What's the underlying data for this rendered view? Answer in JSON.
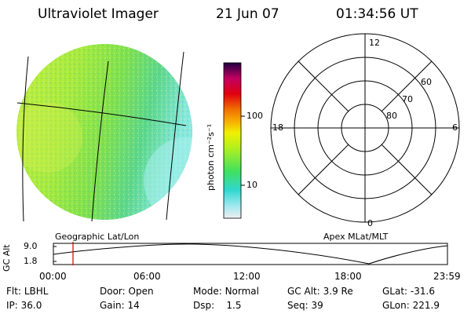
{
  "header": {
    "instrument": "Ultraviolet Imager",
    "date": "21 Jun 07",
    "time": "01:34:56 UT"
  },
  "colorbar": {
    "unit_label": "photon cm⁻²s⁻¹",
    "ticks": [
      "100",
      "10"
    ]
  },
  "polar_plot": {
    "mlt_labels": {
      "top": "12",
      "bottom": "0",
      "left": "18",
      "right": "6"
    },
    "lat_labels": [
      "60",
      "70",
      "80"
    ]
  },
  "timeline": {
    "axis_label": "GC Alt",
    "left_caption": "Geographic Lat/Lon",
    "right_caption": "Apex MLat/MLT",
    "y_ticks": [
      "9.0",
      "1.8"
    ],
    "x_ticks": [
      "00:00",
      "06:00",
      "12:00",
      "18:00",
      "23:59"
    ],
    "current_time": "01:34:56"
  },
  "status": {
    "row1": [
      {
        "key": "Flt:",
        "value": "LBHL"
      },
      {
        "key": "Door:",
        "value": "Open"
      },
      {
        "key": "Mode:",
        "value": "Normal"
      },
      {
        "key": "GC Alt:",
        "value": "3.9 Re"
      },
      {
        "key": "GLat:",
        "value": "-31.6"
      }
    ],
    "row2": [
      {
        "key": "IP:",
        "value": "36.0"
      },
      {
        "key": "Gain:",
        "value": "14"
      },
      {
        "key": "Dsp:",
        "value": "1.5"
      },
      {
        "key": "Seq:",
        "value": "39"
      },
      {
        "key": "GLon:",
        "value": "221.9"
      }
    ]
  }
}
